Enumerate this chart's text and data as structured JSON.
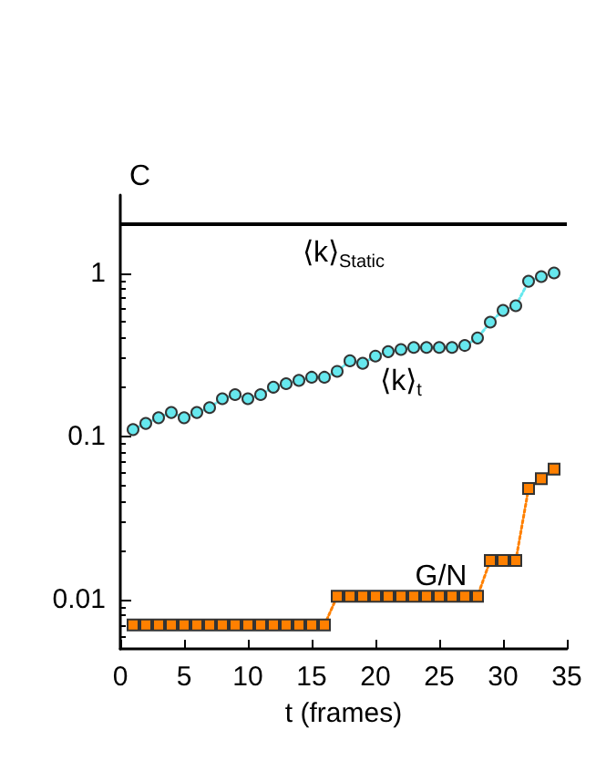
{
  "chart_data": {
    "type": "line",
    "title": "C",
    "xlabel": "t (frames)",
    "x": [
      1,
      2,
      3,
      4,
      5,
      6,
      7,
      8,
      9,
      10,
      11,
      12,
      13,
      14,
      15,
      16,
      17,
      18,
      19,
      20,
      21,
      22,
      23,
      24,
      25,
      26,
      27,
      28,
      29,
      30,
      31,
      32,
      33,
      34
    ],
    "series": [
      {
        "name": "⟨k⟩$_{t}$",
        "color": "#66e8ee",
        "marker": "circle",
        "line_style": "dotted",
        "values": [
          0.11,
          0.12,
          0.13,
          0.14,
          0.13,
          0.14,
          0.15,
          0.17,
          0.18,
          0.17,
          0.18,
          0.2,
          0.21,
          0.22,
          0.23,
          0.23,
          0.25,
          0.29,
          0.28,
          0.31,
          0.33,
          0.34,
          0.35,
          0.35,
          0.35,
          0.35,
          0.36,
          0.4,
          0.5,
          0.59,
          0.63,
          0.89,
          0.95,
          1.0
        ]
      },
      {
        "name": "G/N",
        "color": "#ff8000",
        "marker": "square",
        "line_style": "dotted",
        "values": [
          0.007,
          0.007,
          0.007,
          0.007,
          0.007,
          0.007,
          0.007,
          0.007,
          0.007,
          0.007,
          0.007,
          0.007,
          0.007,
          0.007,
          0.007,
          0.007,
          0.0105,
          0.0105,
          0.0105,
          0.0105,
          0.0105,
          0.0105,
          0.0105,
          0.0105,
          0.0105,
          0.0105,
          0.0105,
          0.0105,
          0.0174,
          0.0174,
          0.0174,
          0.048,
          0.055,
          0.063
        ]
      }
    ],
    "ref_lines": [
      {
        "axis": "y",
        "value": 2,
        "label": "⟨k⟩$_{Static}$",
        "color": "#000000",
        "line_style": "solid"
      }
    ],
    "log": "y",
    "xlim": [
      0,
      35
    ],
    "xticks": [
      0,
      5,
      10,
      15,
      20,
      25,
      30,
      35
    ],
    "ylim": [
      0.005,
      3
    ],
    "yticks": [
      0.01,
      0.1,
      1
    ],
    "grid": false,
    "legend": false
  }
}
